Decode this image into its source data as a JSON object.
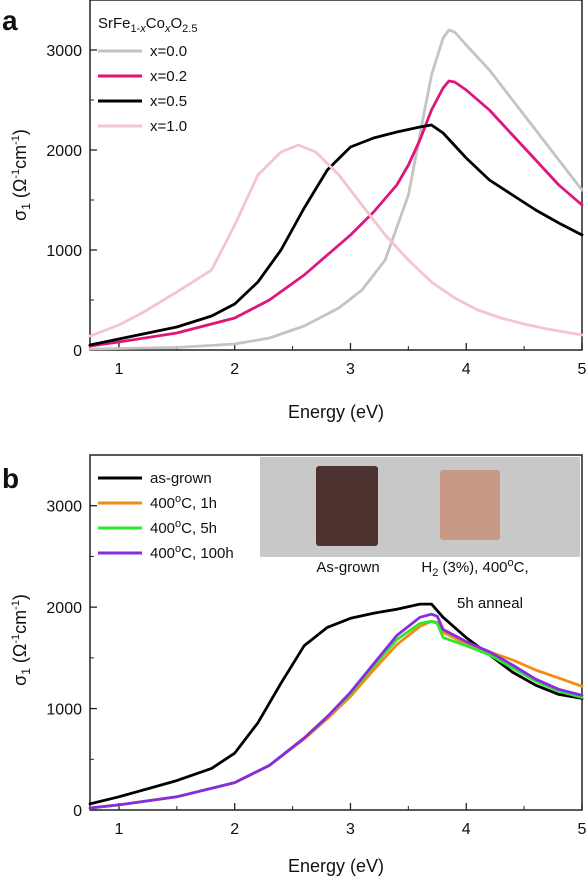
{
  "chart_data": [
    {
      "type": "line",
      "panel_label": "a",
      "xlabel": "Energy (eV)",
      "ylabel": "σ1 (Ω-1cm-1)",
      "xlim": [
        0.75,
        5.0
      ],
      "ylim": [
        0,
        3500
      ],
      "xticks": [
        1,
        2,
        3,
        4,
        5
      ],
      "yticks": [
        0,
        1000,
        2000,
        3000
      ],
      "legend_title": "SrFe1-xCoxO2.5",
      "legend_position": "top-left",
      "series": [
        {
          "name": "x=0.0",
          "color": "#c4c4c4",
          "x": [
            0.75,
            1.0,
            1.5,
            2.0,
            2.3,
            2.6,
            2.9,
            3.1,
            3.3,
            3.5,
            3.6,
            3.7,
            3.8,
            3.85,
            3.9,
            4.0,
            4.2,
            4.4,
            4.6,
            4.8,
            5.0
          ],
          "y": [
            10,
            15,
            25,
            60,
            120,
            240,
            420,
            600,
            900,
            1550,
            2150,
            2750,
            3120,
            3200,
            3180,
            3050,
            2800,
            2500,
            2200,
            1900,
            1600
          ]
        },
        {
          "name": "x=0.2",
          "color": "#e0157a",
          "x": [
            0.75,
            1.0,
            1.5,
            2.0,
            2.3,
            2.6,
            2.8,
            3.0,
            3.2,
            3.4,
            3.5,
            3.6,
            3.7,
            3.8,
            3.85,
            3.9,
            4.0,
            4.2,
            4.4,
            4.6,
            4.8,
            5.0
          ],
          "y": [
            40,
            80,
            170,
            320,
            500,
            750,
            950,
            1150,
            1380,
            1650,
            1850,
            2100,
            2400,
            2620,
            2690,
            2680,
            2600,
            2400,
            2150,
            1900,
            1650,
            1450
          ]
        },
        {
          "name": "x=0.5",
          "color": "#000000",
          "x": [
            0.75,
            1.0,
            1.5,
            1.8,
            2.0,
            2.2,
            2.4,
            2.6,
            2.8,
            3.0,
            3.2,
            3.4,
            3.6,
            3.7,
            3.8,
            4.0,
            4.2,
            4.4,
            4.6,
            4.8,
            5.0
          ],
          "y": [
            50,
            110,
            230,
            340,
            460,
            680,
            1000,
            1420,
            1800,
            2030,
            2120,
            2180,
            2230,
            2250,
            2170,
            1920,
            1700,
            1550,
            1400,
            1270,
            1150
          ]
        },
        {
          "name": "x=1.0",
          "color": "#f5c4cc",
          "x": [
            0.75,
            1.0,
            1.2,
            1.5,
            1.8,
            2.0,
            2.2,
            2.4,
            2.55,
            2.7,
            2.9,
            3.1,
            3.3,
            3.5,
            3.7,
            3.9,
            4.1,
            4.3,
            4.5,
            4.7,
            5.0
          ],
          "y": [
            140,
            250,
            370,
            580,
            800,
            1250,
            1750,
            1980,
            2050,
            1980,
            1750,
            1450,
            1150,
            900,
            680,
            520,
            400,
            320,
            260,
            210,
            150
          ]
        }
      ]
    },
    {
      "type": "line",
      "panel_label": "b",
      "xlabel": "Energy (eV)",
      "ylabel": "σ1 (Ω-1cm-1)",
      "xlim": [
        0.75,
        5.0
      ],
      "ylim": [
        0,
        3500
      ],
      "xticks": [
        1,
        2,
        3,
        4,
        5
      ],
      "yticks": [
        0,
        1000,
        2000,
        3000
      ],
      "legend_position": "top-left",
      "series": [
        {
          "name": "as-grown",
          "color": "#000000",
          "x": [
            0.75,
            1.0,
            1.5,
            1.8,
            2.0,
            2.2,
            2.4,
            2.6,
            2.8,
            3.0,
            3.2,
            3.4,
            3.6,
            3.7,
            3.8,
            4.0,
            4.2,
            4.4,
            4.6,
            4.8,
            5.0
          ],
          "y": [
            60,
            130,
            290,
            410,
            560,
            860,
            1250,
            1620,
            1800,
            1890,
            1940,
            1980,
            2030,
            2030,
            1900,
            1700,
            1530,
            1360,
            1230,
            1140,
            1100
          ]
        },
        {
          "name": "400oC, 1h",
          "color": "#f28c12",
          "x": [
            0.75,
            1.0,
            1.5,
            2.0,
            2.3,
            2.6,
            2.8,
            3.0,
            3.2,
            3.4,
            3.6,
            3.7,
            3.75,
            3.8,
            4.0,
            4.2,
            4.4,
            4.6,
            4.8,
            5.0
          ],
          "y": [
            20,
            50,
            130,
            270,
            440,
            700,
            900,
            1120,
            1380,
            1630,
            1810,
            1860,
            1850,
            1750,
            1640,
            1560,
            1480,
            1380,
            1300,
            1220
          ]
        },
        {
          "name": "400oC, 5h",
          "color": "#2ee82e",
          "x": [
            0.75,
            1.0,
            1.5,
            2.0,
            2.3,
            2.6,
            2.8,
            3.0,
            3.2,
            3.4,
            3.6,
            3.7,
            3.75,
            3.8,
            4.0,
            4.2,
            4.4,
            4.6,
            4.8,
            5.0
          ],
          "y": [
            20,
            50,
            130,
            270,
            440,
            710,
            920,
            1150,
            1420,
            1680,
            1840,
            1860,
            1840,
            1700,
            1620,
            1530,
            1400,
            1270,
            1170,
            1110
          ]
        },
        {
          "name": "400oC, 100h",
          "color": "#8a2be2",
          "x": [
            0.75,
            1.0,
            1.5,
            2.0,
            2.3,
            2.6,
            2.8,
            3.0,
            3.2,
            3.4,
            3.6,
            3.7,
            3.75,
            3.8,
            4.0,
            4.2,
            4.4,
            4.6,
            4.8,
            5.0
          ],
          "y": [
            20,
            50,
            130,
            270,
            440,
            710,
            920,
            1160,
            1440,
            1720,
            1900,
            1930,
            1910,
            1780,
            1660,
            1560,
            1430,
            1290,
            1190,
            1130
          ]
        }
      ]
    }
  ],
  "inset_photo": {
    "caption_left": "As-grown",
    "caption_right_line1": "H2 (3%), 400oC,",
    "caption_right_line2": "5h anneal",
    "sample_left_color": "#4e3230",
    "sample_right_color": "#c89a86",
    "background_color": "#c8c8c8"
  }
}
